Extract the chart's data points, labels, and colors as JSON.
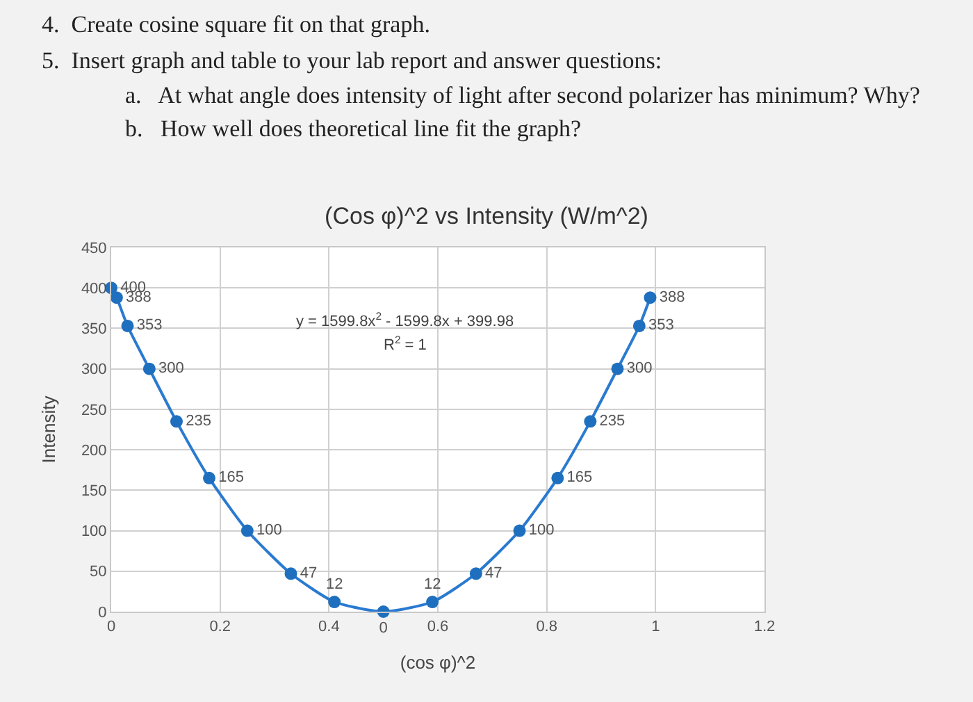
{
  "chart_data": {
    "type": "scatter",
    "title": "(Cos φ)^2 vs Intensity (W/m^2)",
    "xlabel": "(cos φ)^2",
    "ylabel": "Intensity",
    "annotations": [
      "4.  Create cosine square fit on that graph.",
      "5.  Insert graph and table to your lab report and answer questions:",
      "a.   At what angle does intensity of light after second polarizer has minimum? Why?",
      "b.   How well does theoretical line fit the graph?",
      "y = 1599.8x$^{2}$ - 1599.8x + 399.98",
      "R$^{2}$ = 1"
    ],
    "x": [
      0,
      0.01,
      0.03,
      0.07,
      0.12,
      0.18,
      0.25,
      0.33,
      0.41,
      0.5,
      0.59,
      0.67,
      0.75,
      0.82,
      0.88,
      0.93,
      0.97,
      0.99
    ],
    "series": [
      {
        "color": "#1f6fbf",
        "marker": "circle",
        "data_labels": true,
        "values": [
          400,
          388,
          353,
          300,
          235,
          165,
          100,
          47,
          12,
          0,
          12,
          47,
          100,
          165,
          235,
          300,
          353,
          388
        ]
      },
      {
        "type": "line",
        "color": "#2a7ad0",
        "line_style": "solid",
        "x": [
          0,
          0.01,
          0.03,
          0.07,
          0.12,
          0.18,
          0.25,
          0.33,
          0.41,
          0.5,
          0.59,
          0.67,
          0.75,
          0.82,
          0.88,
          0.93,
          0.97,
          0.99
        ],
        "values": [
          400,
          388,
          353,
          300,
          235,
          165,
          100,
          47,
          12,
          0,
          12,
          47,
          100,
          165,
          235,
          300,
          353,
          388
        ]
      }
    ],
    "xlim": [
      0,
      1.2
    ],
    "xticks": [
      0,
      0.2,
      0.4,
      0.6,
      0.8,
      1,
      1.2
    ],
    "ylim": [
      0,
      450
    ],
    "yticks": [
      0,
      50,
      100,
      150,
      200,
      250,
      300,
      350,
      400,
      450
    ],
    "grid": true
  }
}
